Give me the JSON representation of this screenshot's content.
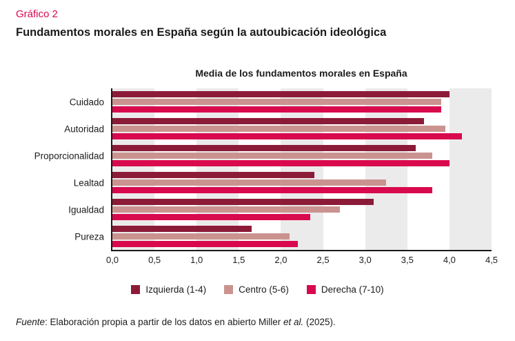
{
  "page": {
    "kicker": "Gráfico 2",
    "title": "Fundamentos morales en España según la autoubicación ideológica",
    "source": {
      "label_italic": "Fuente",
      "text_mid": ": Elaboración propia a partir de los datos en abierto Miller ",
      "etal_italic": "et al.",
      "text_end": " (2025)."
    }
  },
  "colors": {
    "accent": "#D9094E",
    "izquierda": "#8C1B38",
    "centro": "#CB938F",
    "derecha": "#D9094E",
    "stripe_band": "#EBEBEB",
    "axis": "#191919",
    "text": "#1B1B1B"
  },
  "chart_data": {
    "type": "bar",
    "orientation": "horizontal",
    "title": "Media de los fundamentos morales en España",
    "categories": [
      "Cuidado",
      "Autoridad",
      "Proporcionalidad",
      "Lealtad",
      "Igualdad",
      "Pureza"
    ],
    "series": [
      {
        "name": "Izquierda (1-4)",
        "color": "#8C1B38",
        "values": [
          4.0,
          3.7,
          3.6,
          2.4,
          3.1,
          1.65
        ]
      },
      {
        "name": "Centro (5-6)",
        "color": "#CB938F",
        "values": [
          3.9,
          3.95,
          3.8,
          3.25,
          2.7,
          2.1
        ]
      },
      {
        "name": "Derecha (7-10)",
        "color": "#D9094E",
        "values": [
          3.9,
          4.15,
          4.0,
          3.8,
          2.35,
          2.2
        ]
      }
    ],
    "xlim": [
      0,
      4.5
    ],
    "x_tick_step": 0.5,
    "x_tick_labels": [
      "0,0",
      "0,5",
      "1,0",
      "1,5",
      "2,0",
      "2,5",
      "3,0",
      "3,5",
      "4,0",
      "4,5"
    ],
    "grid": "alternating-vertical-bands-starting-gray-at-0",
    "legend_position": "bottom",
    "ylabel": "",
    "xlabel": ""
  }
}
